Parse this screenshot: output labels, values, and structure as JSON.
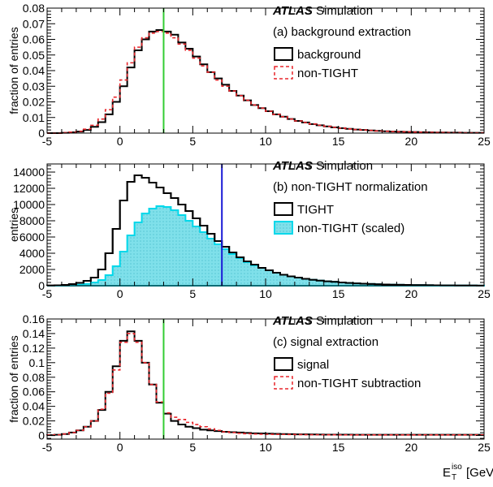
{
  "colors": {
    "frame": "#000000",
    "background_hist": "#000000",
    "nontight_dashed": "#e8262b",
    "fill_cyan": "#7fe0ea",
    "fill_border": "#00d8ea",
    "cut_line_green": "#33cc33",
    "cut_line_blue": "#1a1ad6"
  },
  "x_axis_label": {
    "main": "E",
    "sup": "iso",
    "sub": "T",
    "unit": "[GeV]"
  },
  "chart_data": [
    {
      "type": "bar",
      "panel": "a",
      "atlas_label": "ATLAS",
      "atlas_suffix": "Simulation",
      "subtitle": "(a) background extraction",
      "ylabel": "fraction of entries",
      "xlim": [
        -5,
        25
      ],
      "ylim": [
        0,
        0.08
      ],
      "x_ticks": [
        "-5",
        "0",
        "5",
        "10",
        "15",
        "20",
        "25"
      ],
      "y_ticks": [
        "0",
        "0.01",
        "0.02",
        "0.03",
        "0.04",
        "0.05",
        "0.06",
        "0.07",
        "0.08"
      ],
      "bin_edges": [
        -5,
        -4.5,
        -4,
        -3.5,
        -3,
        -2.5,
        -2,
        -1.5,
        -1,
        -0.5,
        0,
        0.5,
        1,
        1.5,
        2,
        2.5,
        3,
        3.5,
        4,
        4.5,
        5,
        5.5,
        6,
        6.5,
        7,
        7.5,
        8,
        8.5,
        9,
        9.5,
        10,
        10.5,
        11,
        11.5,
        12,
        12.5,
        13,
        13.5,
        14,
        14.5,
        15,
        15.5,
        16,
        16.5,
        17,
        17.5,
        18,
        18.5,
        19,
        19.5,
        20,
        20.5,
        21,
        21.5,
        22,
        22.5,
        23,
        23.5,
        24,
        24.5,
        25
      ],
      "cut_x": 3,
      "series": [
        {
          "name": "background",
          "style": "solid",
          "values": [
            0,
            0,
            0.0002,
            0.0005,
            0.001,
            0.002,
            0.004,
            0.007,
            0.012,
            0.02,
            0.03,
            0.042,
            0.053,
            0.06,
            0.065,
            0.066,
            0.065,
            0.063,
            0.058,
            0.054,
            0.049,
            0.044,
            0.039,
            0.035,
            0.031,
            0.027,
            0.024,
            0.021,
            0.018,
            0.016,
            0.014,
            0.012,
            0.0105,
            0.009,
            0.0078,
            0.0068,
            0.0058,
            0.005,
            0.0043,
            0.0037,
            0.0032,
            0.0027,
            0.0023,
            0.002,
            0.0017,
            0.0014,
            0.0012,
            0.001,
            0.0009,
            0.0008,
            0.0007,
            0.0006,
            0.0005,
            0.0004,
            0.0004,
            0.0003,
            0.0003,
            0.0002,
            0.0002,
            0.0002
          ]
        },
        {
          "name": "non-TIGHT",
          "style": "dashed",
          "values": [
            0,
            0,
            0.0003,
            0.0006,
            0.0012,
            0.0025,
            0.005,
            0.009,
            0.015,
            0.023,
            0.034,
            0.045,
            0.055,
            0.061,
            0.064,
            0.065,
            0.064,
            0.061,
            0.057,
            0.053,
            0.048,
            0.043,
            0.039,
            0.034,
            0.03,
            0.027,
            0.024,
            0.021,
            0.018,
            0.016,
            0.014,
            0.012,
            0.0105,
            0.009,
            0.0078,
            0.0068,
            0.0058,
            0.005,
            0.0043,
            0.0037,
            0.0032,
            0.0027,
            0.0023,
            0.002,
            0.0017,
            0.0014,
            0.0012,
            0.001,
            0.0009,
            0.0008,
            0.0007,
            0.0006,
            0.0005,
            0.0004,
            0.0004,
            0.0003,
            0.0003,
            0.0002,
            0.0002,
            0.0002
          ]
        }
      ]
    },
    {
      "type": "bar",
      "panel": "b",
      "atlas_label": "ATLAS",
      "atlas_suffix": "Simulation",
      "subtitle": "(b) non-TIGHT normalization",
      "ylabel": "entries",
      "xlim": [
        -5,
        25
      ],
      "ylim": [
        0,
        15000
      ],
      "x_ticks": [
        "-5",
        "0",
        "5",
        "10",
        "15",
        "20",
        "25"
      ],
      "y_ticks": [
        "0",
        "2000",
        "4000",
        "6000",
        "8000",
        "10000",
        "12000",
        "14000"
      ],
      "bin_edges": [
        -5,
        -4.5,
        -4,
        -3.5,
        -3,
        -2.5,
        -2,
        -1.5,
        -1,
        -0.5,
        0,
        0.5,
        1,
        1.5,
        2,
        2.5,
        3,
        3.5,
        4,
        4.5,
        5,
        5.5,
        6,
        6.5,
        7,
        7.5,
        8,
        8.5,
        9,
        9.5,
        10,
        10.5,
        11,
        11.5,
        12,
        12.5,
        13,
        13.5,
        14,
        14.5,
        15,
        15.5,
        16,
        16.5,
        17,
        17.5,
        18,
        18.5,
        19,
        19.5,
        20,
        20.5,
        21,
        21.5,
        22,
        22.5,
        23,
        23.5,
        24,
        24.5,
        25
      ],
      "cut_x": 7,
      "series": [
        {
          "name": "TIGHT",
          "style": "solid",
          "values": [
            20,
            50,
            100,
            200,
            350,
            600,
            1000,
            2000,
            4000,
            7000,
            10500,
            12800,
            13600,
            13300,
            12700,
            12100,
            11400,
            10800,
            10000,
            9200,
            8300,
            7400,
            6400,
            5500,
            4800,
            4100,
            3500,
            3000,
            2600,
            2200,
            1900,
            1600,
            1350,
            1150,
            1000,
            850,
            720,
            620,
            540,
            470,
            400,
            340,
            290,
            250,
            210,
            180,
            150,
            130,
            110,
            95,
            80,
            70,
            60,
            50,
            42,
            36,
            30,
            25,
            20,
            16
          ]
        },
        {
          "name": "non-TIGHT (scaled)",
          "style": "filled",
          "values": [
            0,
            10,
            30,
            60,
            120,
            220,
            400,
            700,
            1300,
            2400,
            4200,
            6200,
            7800,
            8900,
            9500,
            9800,
            9700,
            9300,
            8700,
            8000,
            7300,
            6600,
            5800,
            5100,
            4500,
            3900,
            3400,
            2900,
            2500,
            2200,
            1900,
            1600,
            1350,
            1150,
            1000,
            850,
            720,
            620,
            540,
            470,
            400,
            340,
            290,
            250,
            210,
            180,
            150,
            130,
            110,
            95,
            80,
            70,
            60,
            50,
            42,
            36,
            30,
            25,
            20,
            16
          ]
        }
      ]
    },
    {
      "type": "bar",
      "panel": "c",
      "atlas_label": "ATLAS",
      "atlas_suffix": "Simulation",
      "subtitle": "(c) signal extraction",
      "ylabel": "fraction of entries",
      "xlim": [
        -5,
        25
      ],
      "ylim": [
        -0.005,
        0.16
      ],
      "x_ticks": [
        "-5",
        "0",
        "5",
        "10",
        "15",
        "20",
        "25"
      ],
      "y_ticks": [
        "0",
        "0.02",
        "0.04",
        "0.06",
        "0.08",
        "0.1",
        "0.12",
        "0.14",
        "0.16"
      ],
      "bin_edges": [
        -5,
        -4.5,
        -4,
        -3.5,
        -3,
        -2.5,
        -2,
        -1.5,
        -1,
        -0.5,
        0,
        0.5,
        1,
        1.5,
        2,
        2.5,
        3,
        3.5,
        4,
        4.5,
        5,
        5.5,
        6,
        6.5,
        7,
        7.5,
        8,
        8.5,
        9,
        9.5,
        10,
        10.5,
        11,
        11.5,
        12,
        12.5,
        13,
        13.5,
        14,
        14.5,
        15,
        15.5,
        16,
        16.5,
        17,
        17.5,
        18,
        18.5,
        19,
        19.5,
        20,
        20.5,
        21,
        21.5,
        22,
        22.5,
        23,
        23.5,
        24,
        24.5,
        25
      ],
      "cut_x": 3,
      "series": [
        {
          "name": "signal",
          "style": "solid",
          "values": [
            0.0005,
            0.001,
            0.002,
            0.004,
            0.007,
            0.012,
            0.02,
            0.035,
            0.06,
            0.095,
            0.13,
            0.143,
            0.13,
            0.1,
            0.07,
            0.045,
            0.03,
            0.02,
            0.015,
            0.012,
            0.01,
            0.008,
            0.007,
            0.006,
            0.005,
            0.0045,
            0.004,
            0.0035,
            0.003,
            0.0028,
            0.0025,
            0.0022,
            0.002,
            0.0018,
            0.0016,
            0.0015,
            0.0014,
            0.0013,
            0.0012,
            0.0012,
            0.0011,
            0.0011,
            0.001,
            0.001,
            0.001,
            0.001,
            0.001,
            0.001,
            0.001,
            0.001,
            0.001,
            0.001,
            0.001,
            0.001,
            0.001,
            0.001,
            0.001,
            0.001,
            0.001,
            0.001
          ]
        },
        {
          "name": "non-TIGHT subtraction",
          "style": "dashed",
          "values": [
            0.0005,
            0.001,
            0.002,
            0.004,
            0.007,
            0.012,
            0.02,
            0.036,
            0.058,
            0.09,
            0.128,
            0.14,
            0.128,
            0.1,
            0.07,
            0.046,
            0.031,
            0.025,
            0.022,
            0.018,
            0.015,
            0.012,
            0.009,
            0.007,
            0.005,
            0.004,
            0.003,
            0.0025,
            0.002,
            0.0018,
            0.0016,
            0.0015,
            0.0014,
            0.0013,
            0.0012,
            0.0011,
            0.001,
            0.001,
            0.0009,
            0.0009,
            0.0008,
            0.0008,
            0.0008,
            0.0008,
            0.0008,
            0.0008,
            0.0008,
            0.0008,
            0.0008,
            0.0008,
            0.0008,
            0.0008,
            0.0008,
            0.0008,
            0.0008,
            0.0008,
            0.0008,
            0.0008,
            0.0008,
            0.0008
          ]
        }
      ]
    }
  ]
}
